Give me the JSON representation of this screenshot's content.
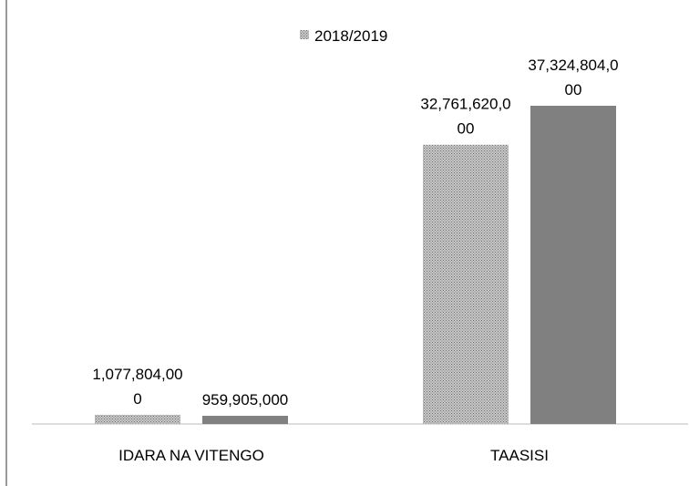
{
  "chart_data": {
    "type": "bar",
    "categories": [
      "IDARA NA VITENGO",
      "TAASISI"
    ],
    "series": [
      {
        "name": "2018/2019",
        "color": "#a0a0a0",
        "values": [
          1077804000,
          32761620000
        ],
        "value_labels": [
          "1,077,804,000",
          "32,761,620,000"
        ]
      },
      {
        "color": "#808080",
        "values": [
          959905000,
          37324804000
        ],
        "value_labels": [
          "959,905,000",
          "37,324,804,000"
        ]
      }
    ],
    "legend": "top"
  }
}
